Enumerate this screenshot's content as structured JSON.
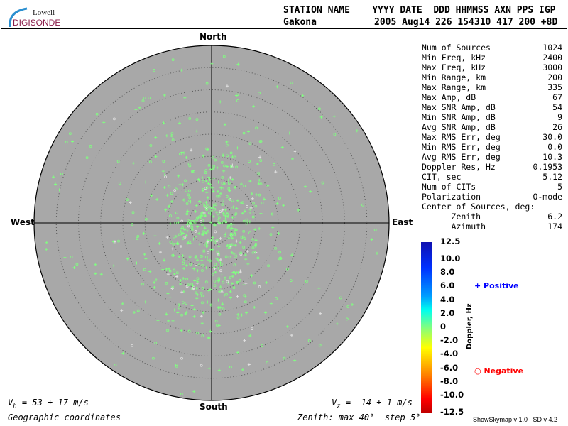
{
  "logo": {
    "line1": "Lowell",
    "line2": "DIGISONDE"
  },
  "header": {
    "labels": "STATION NAME    YYYY DATE  DDD HHMMSS AXN PPS IGP",
    "station": "Gakona",
    "values": "2005 Aug14 226 154310 417 200 +8D"
  },
  "stats": [
    {
      "label": "Num of Sources",
      "value": "1024"
    },
    {
      "label": "Min Freq, kHz",
      "value": "2400"
    },
    {
      "label": "Max Freq, kHz",
      "value": "3000"
    },
    {
      "label": "Min Range, km",
      "value": "200"
    },
    {
      "label": "Max Range, km",
      "value": "335"
    },
    {
      "label": "Max Amp, dB",
      "value": "67"
    },
    {
      "label": "Max SNR Amp, dB",
      "value": "54"
    },
    {
      "label": "Min SNR Amp, dB",
      "value": "9"
    },
    {
      "label": "Avg SNR Amp, dB",
      "value": "26"
    },
    {
      "label": "Max RMS Err, deg",
      "value": "30.0"
    },
    {
      "label": "Min RMS Err, deg",
      "value": "0.0"
    },
    {
      "label": "Avg RMS Err, deg",
      "value": "10.3"
    },
    {
      "label": "Doppler Res, Hz",
      "value": "0.1953"
    },
    {
      "label": "CIT, sec",
      "value": "5.12"
    },
    {
      "label": "Num of CITs",
      "value": "5"
    },
    {
      "label": "Polarization",
      "value": "O-mode"
    },
    {
      "label": "Center of Sources, deg:",
      "value": ""
    },
    {
      "label": "      Zenith",
      "value": "6.2"
    },
    {
      "label": "      Azimuth",
      "value": "174"
    }
  ],
  "chart_data": {
    "type": "scatter",
    "projection": "polar skymap",
    "directions": {
      "north": "North",
      "south": "South",
      "east": "East",
      "west": "West"
    },
    "zenith_max_deg": 40,
    "zenith_step_deg": 5,
    "num_sources": 1024,
    "center_of_sources": {
      "zenith_deg": 6.2,
      "azimuth_deg": 174
    },
    "background_color": "#a8a8a8",
    "point_color": "#80ff80",
    "colorbar": {
      "label": "Doppler, Hz",
      "range": [
        -12.5,
        12.5
      ],
      "ticks": [
        "12.5",
        "10.0",
        "8.0",
        "6.0",
        "4.0",
        "2.0",
        "0",
        "-2.0",
        "-4.0",
        "-6.0",
        "-8.0",
        "-10.0",
        "-12.5"
      ]
    },
    "legend": {
      "positive": "Positive",
      "negative": "Negative",
      "positive_color": "#0000ff",
      "negative_color": "#ff0000"
    }
  },
  "footer": {
    "vh": "= 53 ± 17 m/s",
    "vz": "= -14 ± 1 m/s",
    "coords": "Geographic coordinates",
    "zenith": "Zenith: max 40°  step 5°",
    "version": "ShowSkymap v 1.0   SD v 4.2"
  }
}
